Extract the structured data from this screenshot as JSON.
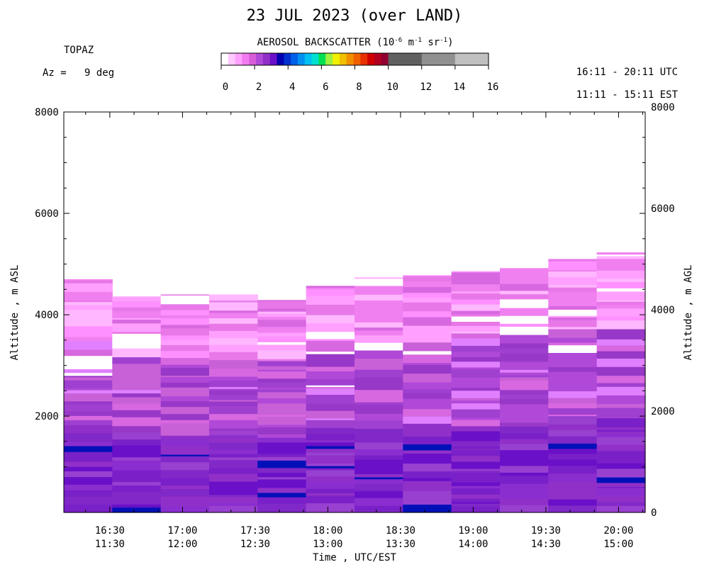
{
  "title": "23 JUL 2023 (over LAND)",
  "instrument": "TOPAZ",
  "azimuth": "Az =   9 deg",
  "utc_range": "16:11 - 20:11 UTC",
  "est_range": "11:11 - 15:11 EST",
  "colorbar": {
    "title_prefix": "AEROSOL BACKSCATTER (10",
    "exp1": "-6",
    "mid": " m",
    "exp2": "-1",
    "mid2": " sr",
    "exp3": "-1",
    "suffix": ")",
    "ticks": [
      "0",
      "2",
      "4",
      "6",
      "8",
      "10",
      "12",
      "14",
      "16"
    ],
    "fine_colors": [
      "#ffffff",
      "#ffc8ff",
      "#ffa0ff",
      "#f07af0",
      "#d85ed8",
      "#b048d8",
      "#9030c8",
      "#6a10c8",
      "#0000b0",
      "#0030d0",
      "#0060e8",
      "#0090f0",
      "#00c0f0",
      "#00e0d0",
      "#00e050",
      "#a0f040",
      "#f0f000",
      "#f0c000",
      "#f09000",
      "#f06000",
      "#e83000",
      "#d00000",
      "#b00020",
      "#900030"
    ],
    "coarse_colors": [
      "#606060",
      "#909090",
      "#c0c0c0"
    ]
  },
  "chart_data": {
    "type": "heatmap",
    "title": "23 JUL 2023 (over LAND)",
    "xlabel": "Time , UTC/EST",
    "ylabel_left": "Altitude , m ASL",
    "ylabel_right": "Altitude , m AGL",
    "x_range": [
      "16:11",
      "20:11"
    ],
    "x_ticks_utc": [
      "16:30",
      "17:00",
      "17:30",
      "18:00",
      "18:30",
      "19:00",
      "19:30",
      "20:00"
    ],
    "x_ticks_est": [
      "11:30",
      "12:00",
      "12:30",
      "13:00",
      "13:30",
      "14:00",
      "14:30",
      "15:00"
    ],
    "y_ticks_left": [
      "2000",
      "4000",
      "6000",
      "8000"
    ],
    "y_ticks_right": [
      "0",
      "2000",
      "4000",
      "6000",
      "8000"
    ],
    "ylim_asl": [
      100,
      8000
    ],
    "ylim_agl": [
      0,
      7900
    ],
    "colorbar_range": [
      0,
      16
    ],
    "column_tops_m_asl": [
      4700,
      4360,
      4400,
      4400,
      4290,
      4570,
      4740,
      4780,
      4860,
      4920,
      5100,
      5230
    ]
  }
}
